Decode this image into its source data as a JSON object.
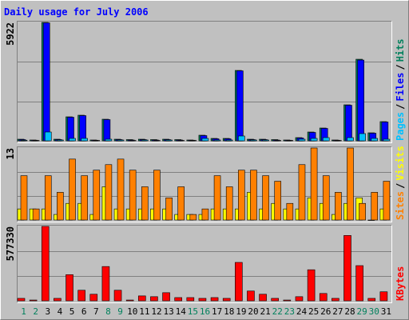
{
  "title": "Daily usage for July 2006",
  "legend_separator": "/",
  "chart_data": [
    {
      "type": "bar",
      "ylim": [
        0,
        5922
      ],
      "series": [
        {
          "name": "Hits",
          "color": "#00805c",
          "values": [
            80,
            40,
            5922,
            80,
            1200,
            1280,
            40,
            1080,
            80,
            60,
            80,
            60,
            80,
            60,
            40,
            280,
            120,
            120,
            3520,
            80,
            80,
            60,
            40,
            160,
            440,
            640,
            40,
            1800,
            4080,
            400,
            960
          ]
        },
        {
          "name": "Files",
          "color": "#0000ff",
          "values": [
            60,
            30,
            5900,
            60,
            1180,
            1260,
            30,
            1060,
            60,
            40,
            60,
            40,
            60,
            40,
            30,
            260,
            100,
            100,
            3500,
            60,
            60,
            40,
            30,
            140,
            420,
            620,
            30,
            1780,
            4040,
            380,
            940
          ]
        },
        {
          "name": "Pages",
          "color": "#00c0ff",
          "values": [
            30,
            20,
            440,
            40,
            120,
            120,
            20,
            80,
            40,
            20,
            40,
            20,
            40,
            20,
            20,
            120,
            40,
            40,
            240,
            40,
            40,
            20,
            20,
            80,
            120,
            160,
            20,
            160,
            360,
            120,
            80
          ]
        }
      ]
    },
    {
      "type": "bar",
      "ylim": [
        0,
        13
      ],
      "series": [
        {
          "name": "Visits",
          "color": "#ffff00",
          "values": [
            2,
            2,
            2,
            1,
            3,
            3,
            1,
            6,
            2,
            2,
            2,
            2,
            2,
            1,
            1,
            1,
            2,
            2,
            2,
            5,
            2,
            3,
            2,
            2,
            4,
            3,
            1,
            3,
            4,
            0,
            2
          ]
        },
        {
          "name": "Sites",
          "color": "#ff8000",
          "values": [
            8,
            2,
            8,
            5,
            11,
            8,
            9,
            10,
            11,
            9,
            6,
            9,
            4,
            6,
            1,
            2,
            8,
            6,
            9,
            9,
            8,
            7,
            3,
            10,
            13,
            8,
            5,
            13,
            3,
            5,
            7
          ]
        }
      ]
    },
    {
      "type": "bar",
      "ylim": [
        0,
        577330
      ],
      "categories": [
        "1",
        "2",
        "3",
        "4",
        "5",
        "6",
        "7",
        "8",
        "9",
        "10",
        "11",
        "12",
        "13",
        "14",
        "15",
        "16",
        "17",
        "18",
        "19",
        "20",
        "21",
        "22",
        "23",
        "24",
        "25",
        "26",
        "27",
        "28",
        "29",
        "30",
        "31"
      ],
      "category_colors": [
        "#00805c",
        "#00805c",
        "#000000",
        "#000000",
        "#000000",
        "#000000",
        "#000000",
        "#00805c",
        "#00805c",
        "#000000",
        "#000000",
        "#000000",
        "#000000",
        "#000000",
        "#00805c",
        "#00805c",
        "#000000",
        "#000000",
        "#000000",
        "#000000",
        "#000000",
        "#00805c",
        "#00805c",
        "#000000",
        "#000000",
        "#000000",
        "#000000",
        "#000000",
        "#00805c",
        "#00805c",
        "#000000"
      ],
      "series": [
        {
          "name": "KBytes",
          "color": "#ff0000",
          "values": [
            19000,
            6000,
            577330,
            19000,
            203000,
            82000,
            51000,
            266000,
            82000,
            6000,
            38000,
            32000,
            63000,
            25000,
            25000,
            19000,
            25000,
            19000,
            298000,
            76000,
            51000,
            19000,
            6000,
            32000,
            241000,
            57000,
            19000,
            507000,
            273000,
            19000,
            70000
          ]
        }
      ]
    }
  ]
}
